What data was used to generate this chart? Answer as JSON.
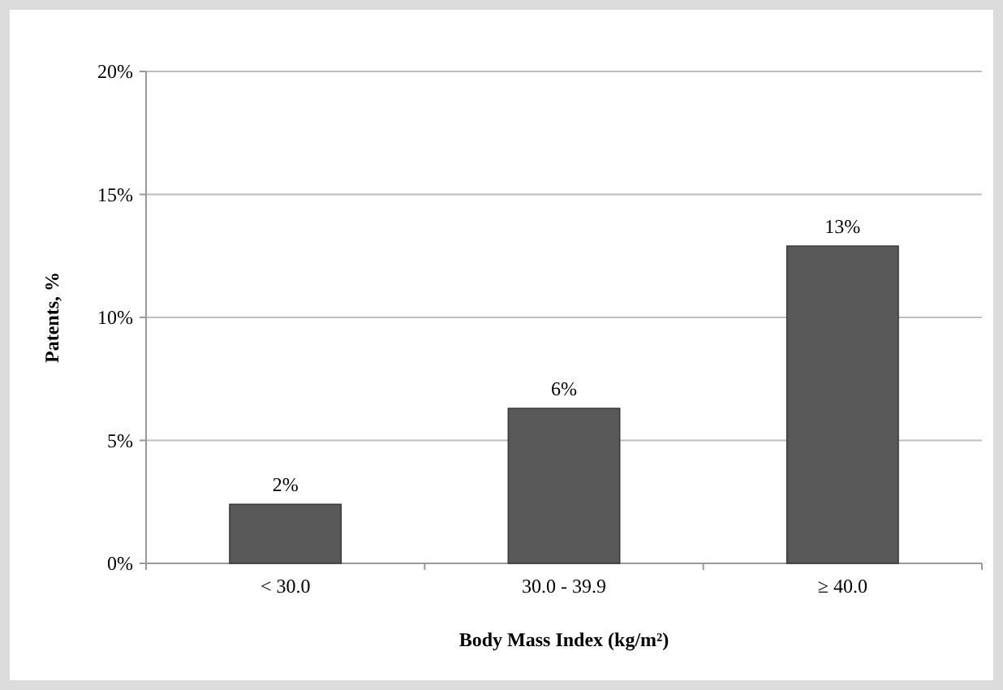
{
  "chart_data": {
    "type": "bar",
    "xlabel": "Body Mass Index (kg/m²)",
    "ylabel": "Patents, %",
    "categories": [
      "< 30.0",
      "30.0 - 39.9",
      "≥ 40.0"
    ],
    "values": [
      2.4,
      6.3,
      12.9
    ],
    "value_labels": [
      "2%",
      "6%",
      "13%"
    ],
    "color": "#595959",
    "ylim": [
      0,
      20
    ],
    "yticks": [
      {
        "value": 0,
        "label": "0%"
      },
      {
        "value": 5,
        "label": "5%"
      },
      {
        "value": 10,
        "label": "10%"
      },
      {
        "value": 15,
        "label": "15%"
      },
      {
        "value": 20,
        "label": "20%"
      }
    ],
    "grid": "y"
  }
}
